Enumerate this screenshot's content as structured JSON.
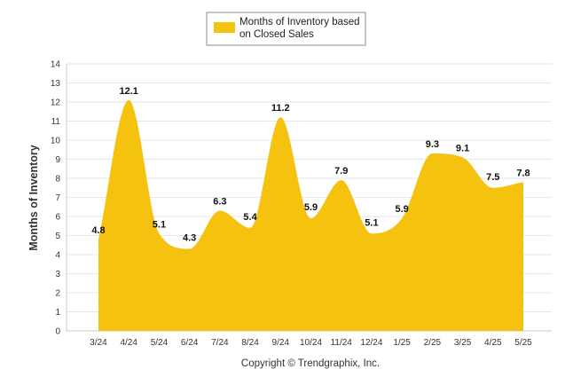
{
  "chart_data": {
    "type": "area",
    "categories": [
      "3/24",
      "4/24",
      "5/24",
      "6/24",
      "7/24",
      "8/24",
      "9/24",
      "10/24",
      "11/24",
      "12/24",
      "1/25",
      "2/25",
      "3/25",
      "4/25",
      "5/25"
    ],
    "series": [
      {
        "name": "Months of Inventory based on Closed Sales",
        "values": [
          4.8,
          12.1,
          5.1,
          4.3,
          6.3,
          5.4,
          11.2,
          5.9,
          7.9,
          5.1,
          5.9,
          9.3,
          9.1,
          7.5,
          7.8
        ],
        "color": "#f5c20f"
      }
    ],
    "legend_lines": [
      "Months of Inventory based",
      "on Closed Sales"
    ],
    "legend_position": "top-center",
    "xlabel": "",
    "ylabel": "Months of Inventory",
    "ylim": [
      0,
      14
    ],
    "yticks": [
      "0",
      "1",
      "2",
      "3",
      "4",
      "5",
      "6",
      "7",
      "8",
      "9",
      "10",
      "11",
      "12",
      "13",
      "14"
    ],
    "grid": true,
    "data_labels": [
      "4.8",
      "12.1",
      "5.1",
      "4.3",
      "6.3",
      "5.4",
      "11.2",
      "5.9",
      "7.9",
      "5.1",
      "5.9",
      "9.3",
      "9.1",
      "7.5",
      "7.8"
    ]
  },
  "footer": "Copyright © Trendgraphix, Inc."
}
